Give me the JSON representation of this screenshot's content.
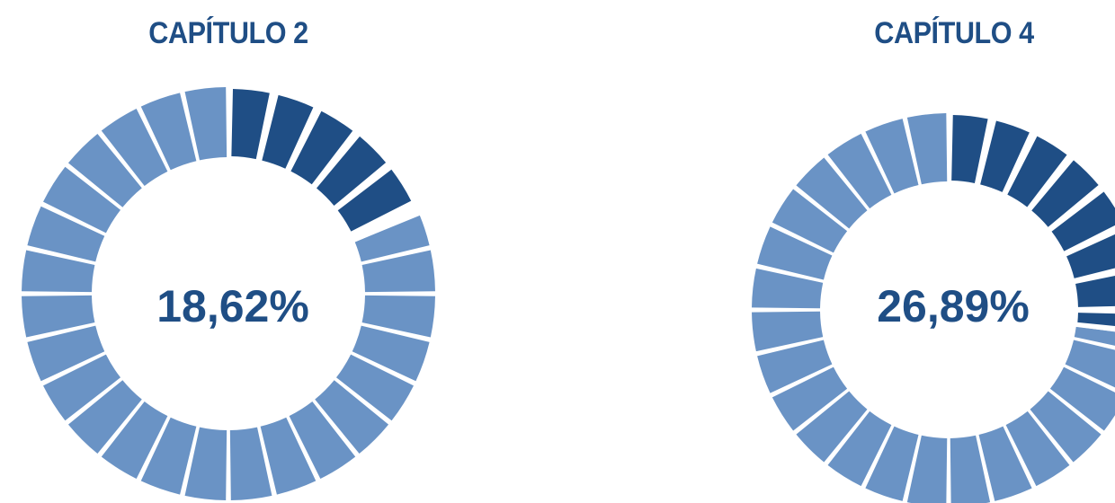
{
  "chart_data": [
    {
      "type": "pie",
      "title": "CAPÍTULO 2",
      "center_label": "18,62%",
      "value_percent": 18.62,
      "segments": 28,
      "colors": {
        "filled": "#1f4e85",
        "remaining": "#6a93c5",
        "background": "#adc8ea"
      }
    },
    {
      "type": "pie",
      "title": "CAPÍTULO 4",
      "center_label": "26,89%",
      "value_percent": 26.89,
      "segments": 28,
      "colors": {
        "filled": "#1f4e85",
        "remaining": "#6a93c5",
        "background": "#adc8ea"
      }
    }
  ]
}
